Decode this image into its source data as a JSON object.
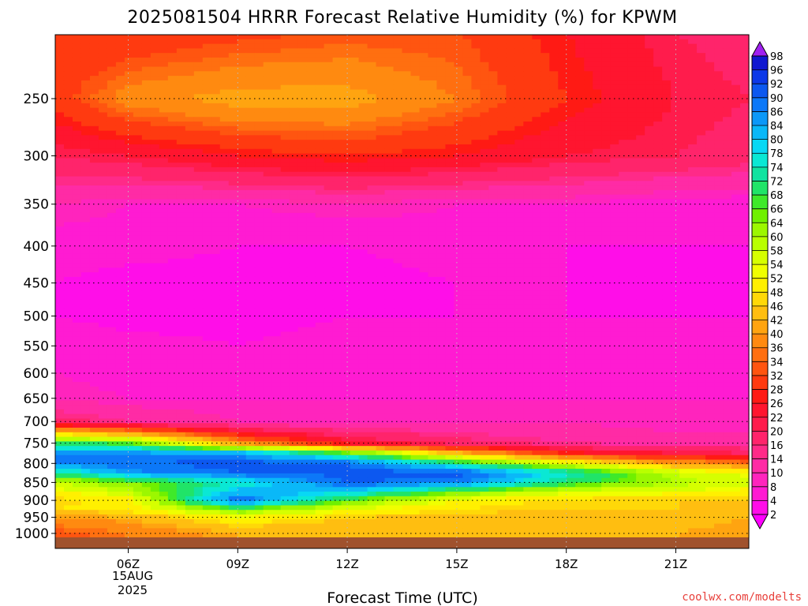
{
  "chart_data": {
    "type": "heatmap",
    "title": "2025081504 HRRR Forecast Relative Humidity (%) for KPWM",
    "xlabel": "Forecast Time (UTC)",
    "ylabel": "",
    "y_axis": "pressure (hPa), inverted, log-like",
    "y_ticks": [
      "250",
      "300",
      "350",
      "400",
      "450",
      "500",
      "550",
      "600",
      "650",
      "700",
      "750",
      "800",
      "850",
      "900",
      "950",
      "1000"
    ],
    "x_ticks": [
      "06Z",
      "09Z",
      "12Z",
      "15Z",
      "18Z",
      "21Z"
    ],
    "x_date_label": [
      "15AUG",
      "2025"
    ],
    "grid": "dotted",
    "colorbar_levels": [
      2,
      4,
      8,
      10,
      14,
      16,
      20,
      22,
      26,
      28,
      32,
      34,
      36,
      40,
      42,
      46,
      48,
      52,
      54,
      58,
      60,
      64,
      66,
      68,
      72,
      74,
      78,
      80,
      84,
      86,
      90,
      92,
      96,
      98
    ],
    "colorbar_colors": [
      "#ff00ff",
      "#ff0ee8",
      "#ff1bd2",
      "#ff24bd",
      "#ff2ba5",
      "#ff2a88",
      "#ff246b",
      "#ff1c4c",
      "#ff152f",
      "#ff1a14",
      "#ff3a10",
      "#ff5510",
      "#ff6f10",
      "#ff8a10",
      "#ffa410",
      "#ffbe10",
      "#ffd808",
      "#fff000",
      "#f0ff00",
      "#d6ff00",
      "#b9ff00",
      "#9cf700",
      "#70f000",
      "#3fe92a",
      "#20e468",
      "#10e3a0",
      "#0ae8d4",
      "#08d8f4",
      "#0ab8f8",
      "#0c98f8",
      "#0c78f8",
      "#0c58f0",
      "#0c38e8",
      "#1018d0",
      "#2a0cc0",
      "#6010c0"
    ],
    "overflow_color": "#a020f0",
    "underflow_color": "#ff00ff",
    "ground_color": "#a0522d",
    "x_range_hours": [
      4,
      23
    ],
    "y_range_hpa": [
      200,
      1010
    ],
    "rh_profile_by_time": {
      "pressure_levels": [
        200,
        250,
        300,
        350,
        400,
        450,
        500,
        550,
        600,
        650,
        700,
        750,
        775,
        800,
        825,
        850,
        875,
        900,
        925,
        950,
        1000
      ],
      "times": [
        4,
        6,
        9,
        12,
        15,
        18,
        21,
        23
      ],
      "rh": [
        [
          28,
          28,
          30,
          32,
          32,
          26,
          20,
          18
        ],
        [
          30,
          38,
          42,
          42,
          36,
          28,
          22,
          20
        ],
        [
          20,
          22,
          26,
          28,
          26,
          22,
          20,
          18
        ],
        [
          10,
          8,
          8,
          10,
          8,
          8,
          6,
          6
        ],
        [
          6,
          6,
          4,
          4,
          6,
          4,
          4,
          4
        ],
        [
          4,
          2,
          2,
          2,
          4,
          4,
          2,
          4
        ],
        [
          4,
          2,
          2,
          4,
          4,
          4,
          4,
          4
        ],
        [
          8,
          6,
          4,
          6,
          6,
          6,
          6,
          6
        ],
        [
          8,
          6,
          6,
          6,
          6,
          6,
          6,
          6
        ],
        [
          10,
          8,
          8,
          8,
          8,
          8,
          8,
          8
        ],
        [
          18,
          14,
          10,
          10,
          10,
          10,
          8,
          8
        ],
        [
          70,
          66,
          40,
          24,
          18,
          14,
          12,
          12
        ],
        [
          86,
          86,
          84,
          68,
          44,
          28,
          22,
          20
        ],
        [
          86,
          90,
          92,
          90,
          72,
          54,
          40,
          36
        ],
        [
          72,
          84,
          90,
          92,
          92,
          76,
          58,
          52
        ],
        [
          58,
          64,
          74,
          90,
          88,
          70,
          60,
          56
        ],
        [
          52,
          58,
          82,
          80,
          66,
          56,
          54,
          50
        ],
        [
          46,
          50,
          90,
          66,
          52,
          46,
          46,
          46
        ],
        [
          48,
          50,
          66,
          54,
          48,
          46,
          46,
          44
        ],
        [
          40,
          42,
          52,
          46,
          44,
          44,
          44,
          42
        ],
        [
          32,
          36,
          42,
          42,
          42,
          42,
          42,
          40
        ]
      ]
    }
  },
  "footer": {
    "credit": "coolwx.com/modelts"
  }
}
